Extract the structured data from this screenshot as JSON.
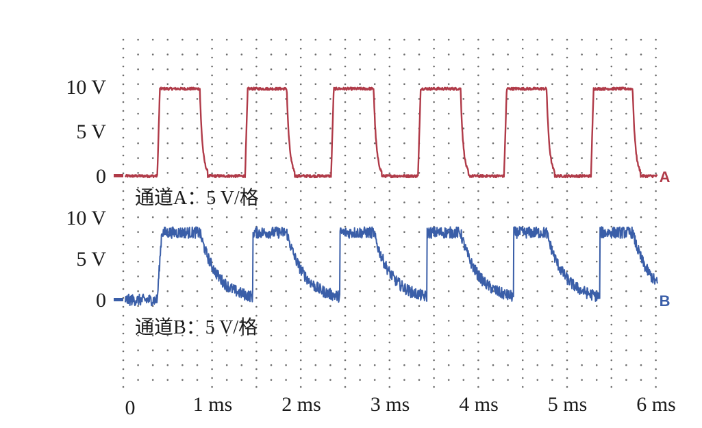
{
  "chart_data": {
    "type": "line",
    "x_ticks": [
      "0",
      "1 ms",
      "2 ms",
      "3 ms",
      "4 ms",
      "5 ms",
      "6 ms"
    ],
    "xlim": [
      0,
      6.2
    ],
    "series": [
      {
        "name": "通道A：5 V/格",
        "marker": "A",
        "color": "#b03a48",
        "y_ticks": [
          "0",
          "5 V",
          "10 V"
        ],
        "ylim": [
          0,
          10
        ],
        "high": 9.8,
        "low": 0,
        "edges": [
          [
            0.36,
            0.84
          ],
          [
            1.35,
            1.82
          ],
          [
            2.32,
            2.8
          ],
          [
            3.3,
            3.78
          ],
          [
            4.27,
            4.75
          ],
          [
            5.25,
            5.72
          ]
        ],
        "rise_ms": 0.03,
        "fall_ms": 0.03,
        "noise": 0.15
      },
      {
        "name": "通道B：5 V/格",
        "marker": "B",
        "color": "#3a5ea8",
        "y_ticks": [
          "0",
          "5 V",
          "10 V"
        ],
        "ylim": [
          0,
          10
        ],
        "high": 8.2,
        "low": 0,
        "edges": [
          [
            0.36,
            0.84
          ],
          [
            1.35,
            1.82
          ],
          [
            2.32,
            2.8
          ],
          [
            3.3,
            3.78
          ],
          [
            4.27,
            4.75
          ],
          [
            5.25,
            5.72
          ]
        ],
        "rise_ms": 0.05,
        "fall_ms": 0.2,
        "noise": 0.7
      }
    ]
  }
}
